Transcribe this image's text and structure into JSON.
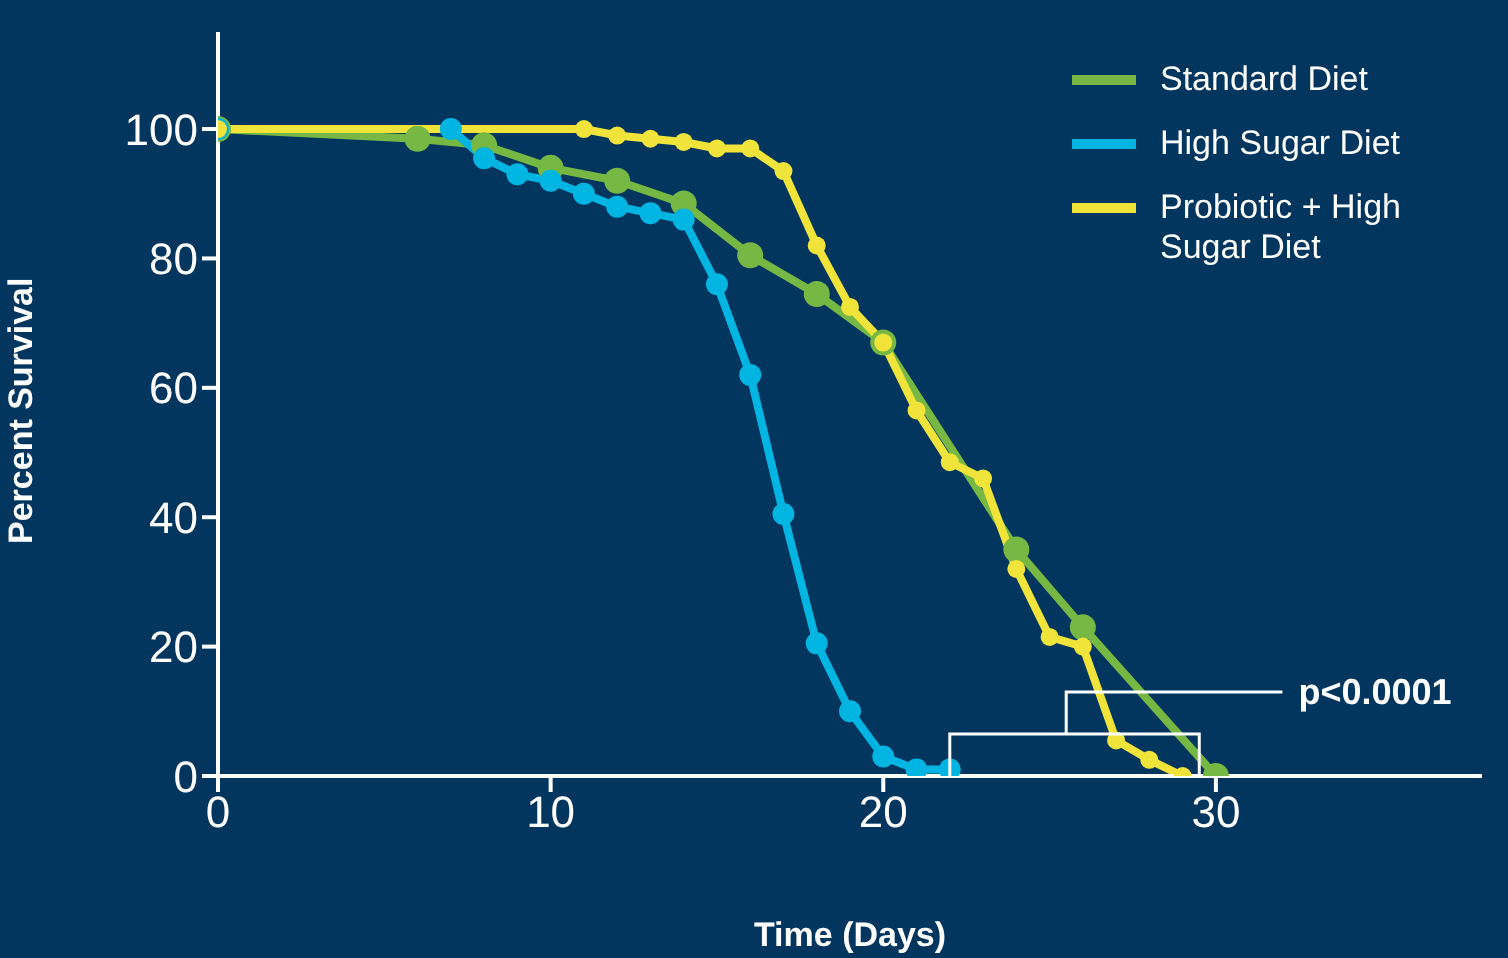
{
  "chart_data": {
    "type": "line",
    "xlabel": "Time (Days)",
    "ylabel": "Percent Survival",
    "xlim": [
      0,
      38
    ],
    "xticks": [
      0,
      10,
      20,
      30
    ],
    "ylim": [
      0,
      115
    ],
    "yticks": [
      0,
      20,
      40,
      60,
      80,
      100
    ],
    "grid": false,
    "legend": "top right",
    "marker": "circle",
    "line_style": "solid",
    "annotations": [
      "p<0.0001"
    ],
    "series": [
      {
        "name": "Standard Diet",
        "color": "#76b843",
        "x": [
          0,
          6,
          8,
          10,
          12,
          14,
          16,
          18,
          20,
          24,
          26,
          30
        ],
        "values": [
          100,
          98.5,
          97.5,
          94,
          92,
          88.5,
          80.5,
          74.5,
          67,
          35,
          23,
          0
        ]
      },
      {
        "name": "High Sugar Diet",
        "color": "#00b5e2",
        "x": [
          0,
          7,
          8,
          9,
          10,
          11,
          12,
          13,
          14,
          15,
          16,
          17,
          18,
          19,
          20,
          21,
          22
        ],
        "values": [
          100,
          100,
          95.5,
          93,
          92,
          90,
          88,
          87,
          86,
          76,
          62,
          40.5,
          20.5,
          10,
          3,
          1,
          1
        ]
      },
      {
        "name": "Probiotic + High Sugar Diet",
        "color": "#f0e43a",
        "x": [
          0,
          11,
          12,
          13,
          14,
          15,
          16,
          17,
          18,
          19,
          20,
          21,
          22,
          23,
          24,
          25,
          26,
          27,
          28,
          29
        ],
        "values": [
          100,
          100,
          99,
          98.5,
          98,
          97,
          97,
          93.5,
          82,
          72.5,
          67,
          56.5,
          48.5,
          46,
          32,
          21.5,
          20,
          5.5,
          2.5,
          0
        ]
      }
    ]
  }
}
